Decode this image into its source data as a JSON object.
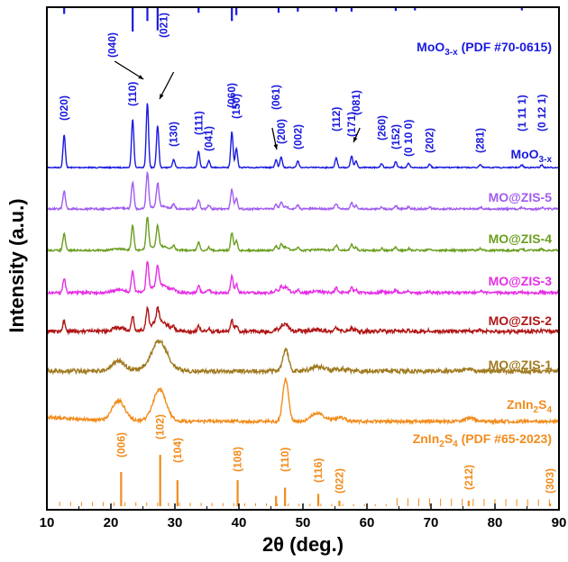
{
  "chart_data": {
    "type": "line",
    "xlabel": "2θ (deg.)",
    "ylabel": "Intensity (a.u.)",
    "xlim": [
      10,
      90
    ],
    "xticks": [
      10,
      20,
      30,
      40,
      50,
      60,
      70,
      80,
      90
    ],
    "colors": {
      "moo3": "#1a1adf",
      "zis5": "#a05cf0",
      "zis4": "#6a9e1f",
      "zis3": "#e62de6",
      "zis2": "#b01515",
      "zis1": "#a07a20",
      "znin2s4": "#f28c1c"
    },
    "reference_patterns": [
      {
        "name": "MoO3-x (PDF #70-0615)",
        "label_main": "MoO",
        "label_sub": "3-x",
        "label_rest": " (PDF #70-0615)",
        "color": "#1a1adf",
        "lines": [
          {
            "x": 12.7,
            "h": 0.25
          },
          {
            "x": 23.4,
            "h": 1.0
          },
          {
            "x": 25.7,
            "h": 0.55
          },
          {
            "x": 27.3,
            "h": 0.95
          },
          {
            "x": 33.7,
            "h": 0.2
          },
          {
            "x": 38.9,
            "h": 0.55
          },
          {
            "x": 39.6,
            "h": 0.3
          },
          {
            "x": 46.2,
            "h": 0.2
          },
          {
            "x": 49.2,
            "h": 0.15
          },
          {
            "x": 55.2,
            "h": 0.15
          },
          {
            "x": 57.6,
            "h": 0.15
          },
          {
            "x": 64.5,
            "h": 0.12
          },
          {
            "x": 67.5,
            "h": 0.1
          },
          {
            "x": 84.2,
            "h": 0.1
          }
        ]
      },
      {
        "name": "ZnIn2S4 (PDF #65-2023)",
        "label_main": "ZnIn",
        "label_sub": "2",
        "label_mid": "S",
        "label_sub2": "4",
        "label_rest": " (PDF #65-2023)",
        "color": "#f28c1c",
        "lines": [
          {
            "x": 21.6,
            "h": 0.5
          },
          {
            "x": 27.7,
            "h": 0.75
          },
          {
            "x": 30.4,
            "h": 0.38
          },
          {
            "x": 39.8,
            "h": 0.38
          },
          {
            "x": 45.8,
            "h": 0.15
          },
          {
            "x": 47.2,
            "h": 0.27
          },
          {
            "x": 52.4,
            "h": 0.18
          },
          {
            "x": 55.7,
            "h": 0.08
          },
          {
            "x": 75.9,
            "h": 0.08
          },
          {
            "x": 88.6,
            "h": 0.04
          }
        ]
      }
    ],
    "series": [
      {
        "key": "moo3",
        "name": "MoO3-x",
        "label_main": "MoO",
        "label_sub": "3-x"
      },
      {
        "key": "zis5",
        "name": "MO@ZIS-5"
      },
      {
        "key": "zis4",
        "name": "MO@ZIS-4"
      },
      {
        "key": "zis3",
        "name": "MO@ZIS-3"
      },
      {
        "key": "zis2",
        "name": "MO@ZIS-2"
      },
      {
        "key": "zis1",
        "name": "MO@ZIS-1"
      },
      {
        "key": "znin2s4",
        "name": "ZnIn2S4",
        "label_main": "ZnIn",
        "label_sub": "2",
        "label_mid": "S",
        "label_sub2": "4"
      }
    ],
    "moo3_peaks": [
      {
        "x": 12.7,
        "label": "(020)"
      },
      {
        "x": 23.4,
        "label": "(110)"
      },
      {
        "x": 25.7,
        "label": "(040)"
      },
      {
        "x": 27.3,
        "label": "(021)"
      },
      {
        "x": 29.8,
        "label": "(130)"
      },
      {
        "x": 33.7,
        "label": "(111)"
      },
      {
        "x": 35.3,
        "label": "(041)"
      },
      {
        "x": 38.9,
        "label": "(060)"
      },
      {
        "x": 39.6,
        "label": "(150)"
      },
      {
        "x": 45.8,
        "label": "(061)"
      },
      {
        "x": 46.6,
        "label": "(200)"
      },
      {
        "x": 49.2,
        "label": "(002)"
      },
      {
        "x": 55.2,
        "label": "(112)"
      },
      {
        "x": 57.6,
        "label": "(171)"
      },
      {
        "x": 58.3,
        "label": "(081)"
      },
      {
        "x": 62.3,
        "label": "(260)"
      },
      {
        "x": 64.5,
        "label": "(152)"
      },
      {
        "x": 66.5,
        "label": "(0 10 0)"
      },
      {
        "x": 69.8,
        "label": "(202)"
      },
      {
        "x": 77.7,
        "label": "(281)"
      },
      {
        "x": 84.2,
        "label": "(1 11 1)"
      },
      {
        "x": 87.3,
        "label": "(0 12 1)"
      }
    ],
    "znin2s4_peaks": [
      {
        "x": 21.6,
        "label": "(006)"
      },
      {
        "x": 27.7,
        "label": "(102)"
      },
      {
        "x": 30.4,
        "label": "(104)"
      },
      {
        "x": 39.8,
        "label": "(108)"
      },
      {
        "x": 47.2,
        "label": "(110)"
      },
      {
        "x": 52.4,
        "label": "(116)"
      },
      {
        "x": 55.7,
        "label": "(022)"
      },
      {
        "x": 75.9,
        "label": "(212)"
      },
      {
        "x": 88.6,
        "label": "(303)"
      }
    ]
  }
}
